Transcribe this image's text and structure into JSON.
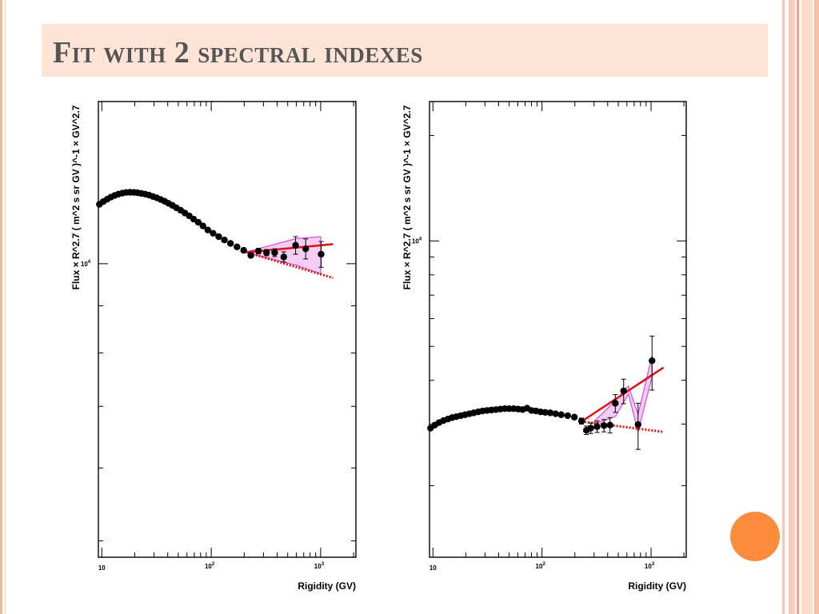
{
  "slide": {
    "title": "Fit with 2 spectral indexes",
    "colors": {
      "title_band": "#fde4d6",
      "title_text": "#555555",
      "accent_dot": "#fb8c3c",
      "fit_line": "#dd1111",
      "band": "#e07ee8"
    }
  },
  "chart_data": [
    {
      "type": "scatter",
      "title": "",
      "xlabel": "Rigidity (GV)",
      "ylabel": "Flux × R^2.7 ( m^2 s sr GV )^-1 × GV^2.7",
      "xscale": "log",
      "yscale": "log",
      "xlim": [
        9.3,
        2100
      ],
      "ylim": [
        4800,
        15000
      ],
      "x_tick_labels": [
        "10",
        "10^2",
        "10^3"
      ],
      "y_tick_labels": [
        "10^4"
      ],
      "grid": false,
      "series": [
        {
          "kind": "data",
          "x": [
            9.5,
            10.3,
            11.2,
            12.1,
            13.1,
            14.2,
            15.4,
            16.7,
            18.1,
            19.6,
            21.2,
            23,
            24.9,
            27,
            29.3,
            31.8,
            34.5,
            37.5,
            40.7,
            44.2,
            48,
            52.5,
            57.5,
            63,
            69,
            76,
            84,
            93,
            104,
            117,
            132,
            150,
            172,
            198,
            230,
            270,
            320,
            380,
            460,
            590,
            730,
            1010
          ],
          "y": [
            11600,
            11680,
            11750,
            11810,
            11860,
            11900,
            11930,
            11950,
            11955,
            11950,
            11940,
            11920,
            11900,
            11870,
            11830,
            11790,
            11740,
            11690,
            11630,
            11570,
            11500,
            11430,
            11350,
            11270,
            11180,
            11090,
            10990,
            10880,
            10790,
            10700,
            10610,
            10520,
            10430,
            10340,
            10210,
            10320,
            10280,
            10280,
            10170,
            10470,
            10380,
            10240
          ],
          "y_err": [
            0,
            0,
            0,
            0,
            0,
            0,
            0,
            0,
            0,
            0,
            0,
            0,
            0,
            0,
            0,
            0,
            0,
            0,
            0,
            0,
            0,
            0,
            0,
            0,
            0,
            0,
            0,
            0,
            0,
            0,
            0,
            0,
            0,
            0,
            60,
            70,
            80,
            100,
            130,
            230,
            260,
            330
          ]
        },
        {
          "kind": "fit-solid",
          "x": [
            210,
            1300
          ],
          "y": [
            10290,
            10500
          ]
        },
        {
          "kind": "fit-dotted",
          "x": [
            210,
            1300
          ],
          "y": [
            10290,
            9650
          ]
        },
        {
          "kind": "band",
          "x": [
            210,
            600,
            1000
          ],
          "y_low": [
            10280,
            9960,
            9750
          ],
          "y_high": [
            10300,
            10650,
            10700
          ]
        }
      ]
    },
    {
      "type": "scatter",
      "title": "",
      "xlabel": "Rigidity (GV)",
      "ylabel": "Flux × R^2.7 ( m^2 s sr GV )^-1 × GV^2.7",
      "xscale": "log",
      "yscale": "log",
      "xlim": [
        9.3,
        2100
      ],
      "ylim": [
        1250,
        25000
      ],
      "x_tick_labels": [
        "10",
        "10^2",
        "10^3"
      ],
      "y_tick_labels": [
        "10^4"
      ],
      "grid": false,
      "series": [
        {
          "kind": "data",
          "x": [
            9.5,
            10.4,
            11.4,
            12.5,
            13.7,
            15,
            16.4,
            18,
            19.7,
            21.6,
            23.7,
            26,
            28.5,
            31.3,
            34.4,
            37.8,
            41.5,
            45.6,
            50,
            55,
            60.5,
            66.5,
            73,
            80,
            88,
            97,
            107,
            119,
            133,
            150,
            172,
            198,
            230,
            255,
            280,
            320,
            370,
            420,
            470,
            560,
            760,
            1020
          ],
          "y": [
            2920,
            2980,
            3030,
            3070,
            3100,
            3130,
            3150,
            3170,
            3190,
            3210,
            3230,
            3250,
            3270,
            3280,
            3290,
            3300,
            3310,
            3320,
            3320,
            3320,
            3310,
            3300,
            3330,
            3280,
            3270,
            3250,
            3240,
            3230,
            3210,
            3190,
            3170,
            3140,
            3060,
            2880,
            2920,
            2950,
            2970,
            2980,
            3440,
            3730,
            2990,
            4550
          ],
          "y_err": [
            0,
            0,
            0,
            0,
            0,
            0,
            0,
            0,
            0,
            0,
            0,
            0,
            0,
            0,
            0,
            0,
            0,
            0,
            0,
            0,
            0,
            0,
            0,
            0,
            0,
            0,
            0,
            0,
            0,
            0,
            0,
            0,
            60,
            80,
            100,
            110,
            120,
            150,
            200,
            300,
            450,
            800
          ]
        },
        {
          "kind": "fit-solid",
          "x": [
            230,
            1300
          ],
          "y": [
            3050,
            4350
          ]
        },
        {
          "kind": "fit-dotted",
          "x": [
            230,
            1300
          ],
          "y": [
            3050,
            2850
          ]
        },
        {
          "kind": "band",
          "x": [
            300,
            470,
            620,
            760,
            1020
          ],
          "y_low": [
            3000,
            3150,
            3650,
            2850,
            4100
          ],
          "y_high": [
            3050,
            3500,
            3850,
            3200,
            4700
          ]
        }
      ]
    }
  ]
}
